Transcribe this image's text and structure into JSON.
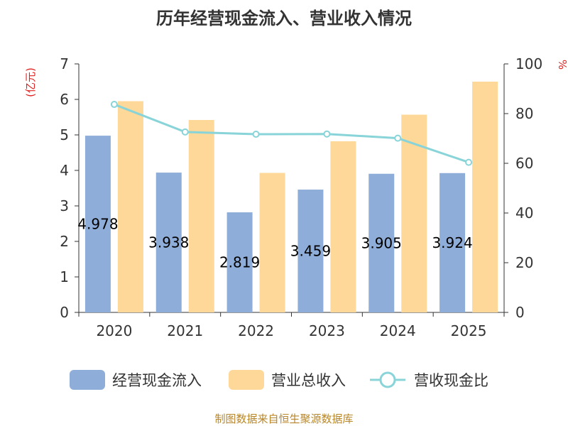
{
  "colors": {
    "cash_inflow": "#8eadd9",
    "revenue": "#fed898",
    "ratio": "#88d4d8",
    "unit_text": "#e01f1f",
    "source_text": "#b8862a"
  },
  "chart_data": {
    "type": "bar",
    "title": "历年经营现金流入、营业收入情况",
    "categories": [
      "2020",
      "2021",
      "2022",
      "2023",
      "2024",
      "2025"
    ],
    "left_axis": {
      "label": "(亿元)",
      "min": 0,
      "max": 7,
      "ticks": [
        "0",
        "1",
        "2",
        "3",
        "4",
        "5",
        "6",
        "7"
      ]
    },
    "right_axis": {
      "label": "%",
      "min": 0,
      "max": 100,
      "ticks": [
        "0",
        "20",
        "40",
        "60",
        "80",
        "100"
      ]
    },
    "series": [
      {
        "name": "经营现金流入",
        "kind": "bar",
        "axis": "left",
        "values": [
          4.978,
          3.938,
          2.819,
          3.459,
          3.905,
          3.924
        ],
        "labels": [
          "4.978",
          "3.938",
          "2.819",
          "3.459",
          "3.905",
          "3.924"
        ]
      },
      {
        "name": "营业总收入",
        "kind": "bar",
        "axis": "left",
        "values": [
          5.95,
          5.42,
          3.93,
          4.82,
          5.57,
          6.5
        ]
      },
      {
        "name": "营收现金比",
        "kind": "line",
        "axis": "right",
        "values": [
          83.7,
          72.6,
          71.7,
          71.8,
          70.1,
          60.4
        ]
      }
    ],
    "grid": false,
    "legend_position": "bottom",
    "source": "制图数据来自恒生聚源数据库"
  }
}
